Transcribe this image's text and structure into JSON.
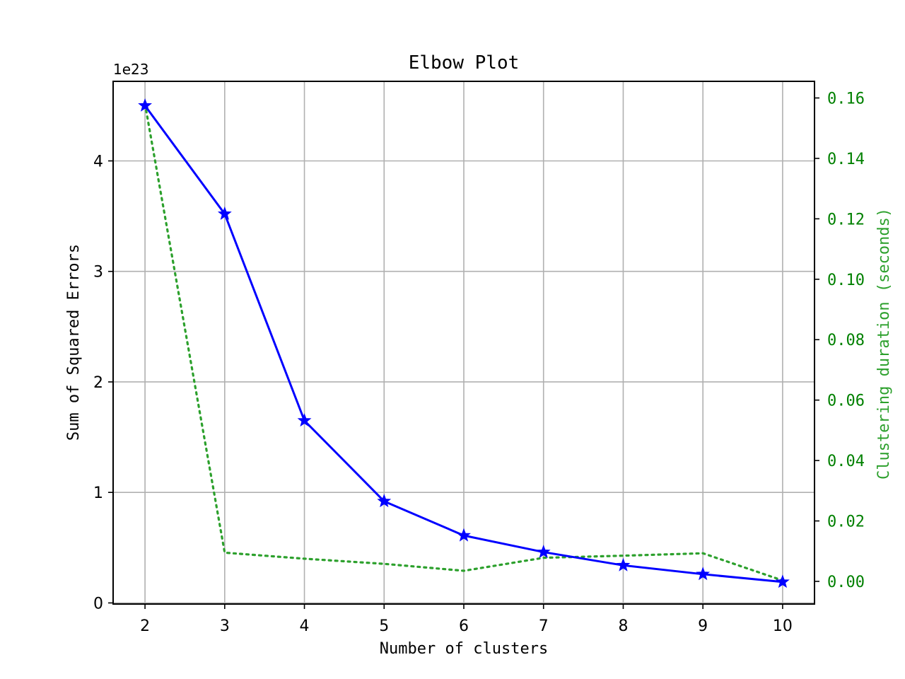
{
  "chart_data": {
    "type": "line",
    "title": "Elbow Plot",
    "xlabel": "Number of clusters",
    "ylabel": "Sum of Squared Errors",
    "ylabel_right": "Clustering duration (seconds)",
    "y_offset_text": "1e23",
    "x": [
      2,
      3,
      4,
      5,
      6,
      7,
      8,
      9,
      10
    ],
    "xlim": [
      1.6,
      10.4
    ],
    "ylim": [
      -0.01,
      4.72
    ],
    "ylim_right": [
      -0.0075,
      0.1655
    ],
    "x_ticks": [
      "2",
      "3",
      "4",
      "5",
      "6",
      "7",
      "8",
      "9",
      "10"
    ],
    "y_ticks": [
      0,
      1,
      2,
      3,
      4
    ],
    "y_tick_labels": [
      "0",
      "1",
      "2",
      "3",
      "4"
    ],
    "y_ticks_right": [
      0.0,
      0.02,
      0.04,
      0.06,
      0.08,
      0.1,
      0.12,
      0.14,
      0.16
    ],
    "y_tick_labels_right": [
      "0.00",
      "0.02",
      "0.04",
      "0.06",
      "0.08",
      "0.10",
      "0.12",
      "0.14",
      "0.16"
    ],
    "grid": true,
    "series": [
      {
        "axis": "left",
        "style": "solid",
        "marker": "star",
        "color": "#0000ff",
        "values": [
          4.5,
          3.52,
          1.65,
          0.92,
          0.61,
          0.46,
          0.34,
          0.26,
          0.19
        ]
      },
      {
        "axis": "right",
        "style": "dotted",
        "marker": "none",
        "color": "#2ca02c",
        "values": [
          0.158,
          0.0095,
          0.0075,
          0.0058,
          0.0035,
          0.0078,
          0.0085,
          0.0093,
          0.0003
        ]
      }
    ],
    "colors": {
      "right_axis_ticks": "#008000",
      "right_axis_label": "#2ca02c",
      "grid": "#b0b0b0"
    }
  }
}
